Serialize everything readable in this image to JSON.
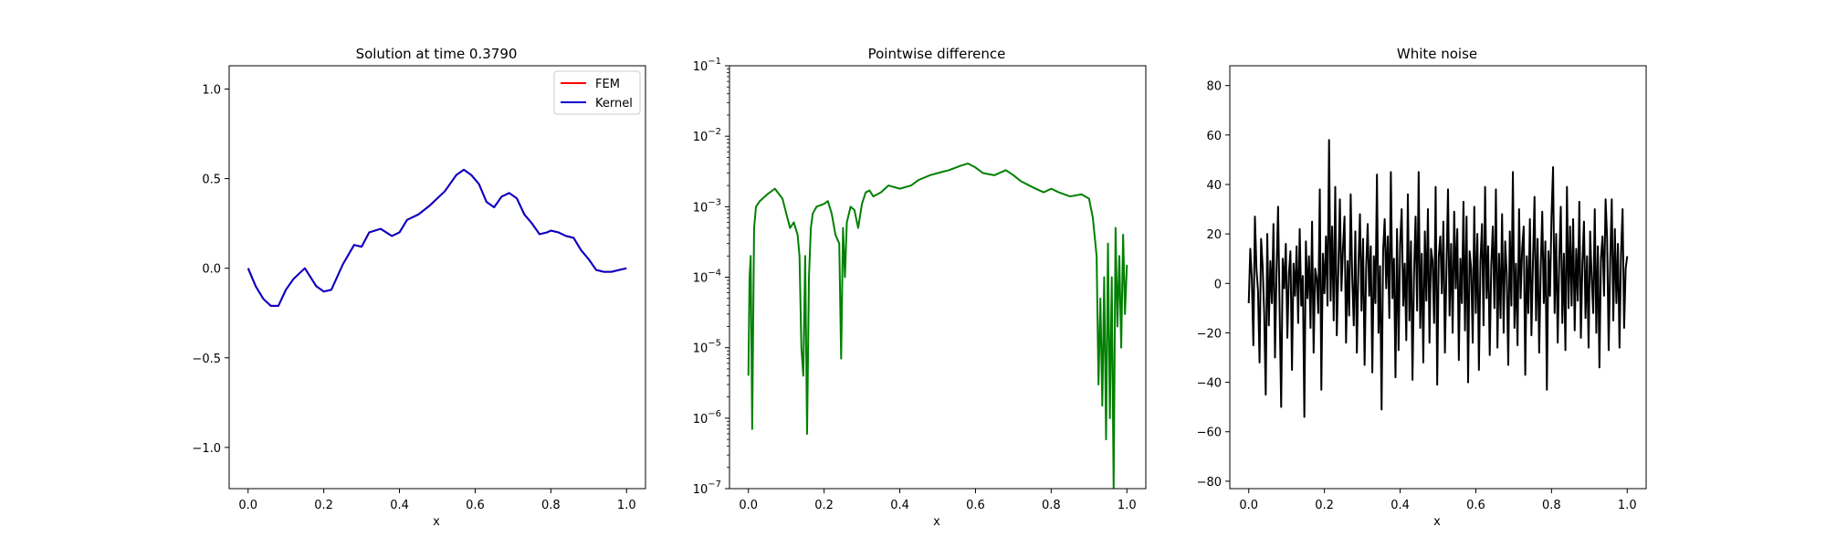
{
  "chart_data": [
    {
      "type": "line",
      "title": "Solution at time 0.3790",
      "xlabel": "x",
      "ylabel": "",
      "xlim": [
        -0.05,
        1.05
      ],
      "ylim": [
        -1.23,
        1.13
      ],
      "yscale": "linear",
      "xticks": [
        0.0,
        0.2,
        0.4,
        0.6,
        0.8,
        1.0
      ],
      "xtick_labels": [
        "0.0",
        "0.2",
        "0.4",
        "0.6",
        "0.8",
        "1.0"
      ],
      "yticks": [
        -1.0,
        -0.5,
        0.0,
        0.5,
        1.0
      ],
      "ytick_labels": [
        "−1.0",
        "−0.5",
        "0.0",
        "0.5",
        "1.0"
      ],
      "grid": false,
      "legend": {
        "placement": "top-right",
        "entries": [
          {
            "name": "FEM",
            "color": "#ff0000"
          },
          {
            "name": "Kernel",
            "color": "#0000cc"
          }
        ]
      },
      "x": [
        0.0,
        0.02,
        0.04,
        0.06,
        0.08,
        0.1,
        0.12,
        0.15,
        0.18,
        0.2,
        0.22,
        0.25,
        0.28,
        0.3,
        0.32,
        0.35,
        0.38,
        0.4,
        0.42,
        0.45,
        0.48,
        0.5,
        0.52,
        0.55,
        0.57,
        0.59,
        0.61,
        0.63,
        0.65,
        0.67,
        0.69,
        0.71,
        0.73,
        0.75,
        0.77,
        0.79,
        0.8,
        0.82,
        0.84,
        0.86,
        0.88,
        0.9,
        0.92,
        0.94,
        0.96,
        0.98,
        1.0
      ],
      "series": [
        {
          "name": "FEM",
          "color": "#ff0000",
          "values": [
            0.0,
            -0.1,
            -0.17,
            -0.21,
            -0.21,
            -0.12,
            -0.06,
            0.0,
            -0.1,
            -0.13,
            -0.12,
            0.02,
            0.13,
            0.12,
            0.2,
            0.22,
            0.18,
            0.2,
            0.27,
            0.3,
            0.35,
            0.39,
            0.43,
            0.52,
            0.55,
            0.52,
            0.47,
            0.37,
            0.34,
            0.4,
            0.42,
            0.39,
            0.3,
            0.25,
            0.19,
            0.2,
            0.21,
            0.2,
            0.18,
            0.17,
            0.1,
            0.05,
            -0.01,
            -0.02,
            -0.02,
            -0.01,
            0.0
          ]
        },
        {
          "name": "Kernel",
          "color": "#0000cc",
          "values": [
            0.0,
            -0.1,
            -0.17,
            -0.21,
            -0.21,
            -0.12,
            -0.06,
            0.0,
            -0.1,
            -0.13,
            -0.12,
            0.02,
            0.13,
            0.12,
            0.2,
            0.22,
            0.18,
            0.2,
            0.27,
            0.3,
            0.35,
            0.39,
            0.43,
            0.52,
            0.55,
            0.52,
            0.47,
            0.37,
            0.34,
            0.4,
            0.42,
            0.39,
            0.3,
            0.25,
            0.19,
            0.2,
            0.21,
            0.2,
            0.18,
            0.17,
            0.1,
            0.05,
            -0.01,
            -0.02,
            -0.02,
            -0.01,
            0.0
          ]
        }
      ]
    },
    {
      "type": "line",
      "title": "Pointwise difference",
      "xlabel": "x",
      "ylabel": "",
      "xlim": [
        -0.05,
        1.05
      ],
      "ylim": [
        1e-07,
        0.1
      ],
      "yscale": "log",
      "xticks": [
        0.0,
        0.2,
        0.4,
        0.6,
        0.8,
        1.0
      ],
      "xtick_labels": [
        "0.0",
        "0.2",
        "0.4",
        "0.6",
        "0.8",
        "1.0"
      ],
      "yticks": [
        1e-07,
        1e-06,
        1e-05,
        0.0001,
        0.001,
        0.01,
        0.1
      ],
      "ytick_labels": [
        {
          "base": "10",
          "exp": "−7"
        },
        {
          "base": "10",
          "exp": "−6"
        },
        {
          "base": "10",
          "exp": "−5"
        },
        {
          "base": "10",
          "exp": "−4"
        },
        {
          "base": "10",
          "exp": "−3"
        },
        {
          "base": "10",
          "exp": "−2"
        },
        {
          "base": "10",
          "exp": "−1"
        }
      ],
      "grid": false,
      "series": [
        {
          "name": "",
          "color": "#008000",
          "x": [
            0.0,
            0.003,
            0.006,
            0.01,
            0.015,
            0.02,
            0.03,
            0.05,
            0.07,
            0.09,
            0.1,
            0.11,
            0.12,
            0.13,
            0.135,
            0.14,
            0.145,
            0.15,
            0.155,
            0.16,
            0.165,
            0.17,
            0.18,
            0.2,
            0.21,
            0.22,
            0.23,
            0.24,
            0.245,
            0.25,
            0.255,
            0.26,
            0.27,
            0.28,
            0.29,
            0.3,
            0.31,
            0.32,
            0.33,
            0.35,
            0.37,
            0.4,
            0.43,
            0.45,
            0.48,
            0.5,
            0.53,
            0.56,
            0.58,
            0.6,
            0.62,
            0.65,
            0.68,
            0.7,
            0.72,
            0.75,
            0.78,
            0.8,
            0.82,
            0.85,
            0.88,
            0.9,
            0.91,
            0.92,
            0.925,
            0.93,
            0.935,
            0.94,
            0.945,
            0.95,
            0.955,
            0.96,
            0.965,
            0.97,
            0.975,
            0.98,
            0.985,
            0.99,
            0.995,
            1.0
          ],
          "values": [
            4e-06,
            0.0001,
            0.0002,
            7e-07,
            0.0005,
            0.001,
            0.0012,
            0.0015,
            0.0018,
            0.0013,
            0.0008,
            0.0005,
            0.0006,
            0.0004,
            0.0002,
            1e-05,
            4e-06,
            0.0002,
            6e-07,
            0.0001,
            0.0005,
            0.0008,
            0.001,
            0.0011,
            0.0012,
            0.0008,
            0.0004,
            0.0003,
            7e-06,
            0.0005,
            0.0001,
            0.0006,
            0.001,
            0.0009,
            0.0005,
            0.0011,
            0.0016,
            0.0017,
            0.0014,
            0.0016,
            0.002,
            0.0018,
            0.002,
            0.0024,
            0.0028,
            0.003,
            0.0033,
            0.0038,
            0.0041,
            0.0036,
            0.003,
            0.0028,
            0.0033,
            0.0028,
            0.0023,
            0.0019,
            0.0016,
            0.0018,
            0.0016,
            0.0014,
            0.0015,
            0.0013,
            0.0007,
            0.0002,
            3e-06,
            5e-05,
            1.5e-06,
            0.0001,
            5e-07,
            0.0003,
            1e-06,
            0.0001,
            1e-07,
            0.0005,
            2e-05,
            0.0002,
            1e-05,
            0.0004,
            3e-05,
            0.00015
          ]
        }
      ]
    },
    {
      "type": "line",
      "title": "White noise",
      "xlabel": "x",
      "ylabel": "",
      "xlim": [
        -0.05,
        1.05
      ],
      "ylim": [
        -83,
        88
      ],
      "yscale": "linear",
      "xticks": [
        0.0,
        0.2,
        0.4,
        0.6,
        0.8,
        1.0
      ],
      "xtick_labels": [
        "0.0",
        "0.2",
        "0.4",
        "0.6",
        "0.8",
        "1.0"
      ],
      "yticks": [
        -80,
        -60,
        -40,
        -20,
        0,
        20,
        40,
        60,
        80
      ],
      "ytick_labels": [
        "−80",
        "−60",
        "−40",
        "−20",
        "0",
        "20",
        "40",
        "60",
        "80"
      ],
      "grid": false,
      "series": [
        {
          "name": "",
          "color": "#000000",
          "x_start": 0.0,
          "x_end": 1.0,
          "values": [
            -8,
            14,
            2,
            -25,
            27,
            6,
            -3,
            -32,
            18,
            7,
            -12,
            -45,
            20,
            -17,
            9,
            -8,
            24,
            -30,
            5,
            31,
            -11,
            -50,
            10,
            -2,
            16,
            -22,
            4,
            13,
            -35,
            8,
            -5,
            15,
            -16,
            22,
            -9,
            3,
            -54,
            17,
            -6,
            11,
            -18,
            25,
            -28,
            6,
            2,
            -12,
            38,
            -43,
            12,
            -4,
            19,
            -9,
            58,
            -7,
            23,
            -15,
            39,
            -21,
            5,
            34,
            -3,
            14,
            27,
            -24,
            9,
            -13,
            36,
            2,
            -17,
            21,
            -28,
            7,
            28,
            -11,
            18,
            -33,
            6,
            24,
            -5,
            15,
            -36,
            11,
            -8,
            44,
            -20,
            7,
            -51,
            13,
            26,
            -2,
            19,
            -14,
            45,
            -6,
            10,
            -38,
            22,
            -27,
            16,
            30,
            -9,
            8,
            -23,
            36,
            -15,
            17,
            -39,
            4,
            27,
            -11,
            45,
            -18,
            12,
            -32,
            21,
            -7,
            30,
            -24,
            14,
            9,
            -16,
            39,
            -41,
            11,
            19,
            -4,
            25,
            -28,
            6,
            38,
            -13,
            16,
            -20,
            29,
            -2,
            22,
            -31,
            10,
            -8,
            33,
            -19,
            27,
            -40,
            13,
            6,
            -24,
            31,
            -12,
            20,
            -35,
            9,
            24,
            -17,
            39,
            -6,
            15,
            -29,
            7,
            23,
            -10,
            38,
            -26,
            12,
            -14,
            28,
            -20,
            17,
            4,
            -33,
            21,
            -9,
            45,
            -18,
            8,
            -25,
            30,
            -6,
            14,
            23,
            -37,
            11,
            -12,
            26,
            -21,
            9,
            35,
            -15,
            18,
            -28,
            6,
            29,
            -8,
            17,
            -43,
            13,
            -5,
            27,
            47,
            -12,
            20,
            -24,
            9,
            31,
            -16,
            12,
            -27,
            39,
            -10,
            23,
            -9,
            26,
            -19,
            14,
            -7,
            33,
            -22,
            8,
            25,
            -14,
            11,
            -26,
            21,
            2,
            -12,
            30,
            -20,
            15,
            -34,
            10,
            19,
            -5,
            34,
            18,
            -27,
            9,
            34,
            -15,
            22,
            -8,
            16,
            -26,
            12,
            30,
            -18,
            6,
            11
          ]
        }
      ]
    }
  ]
}
